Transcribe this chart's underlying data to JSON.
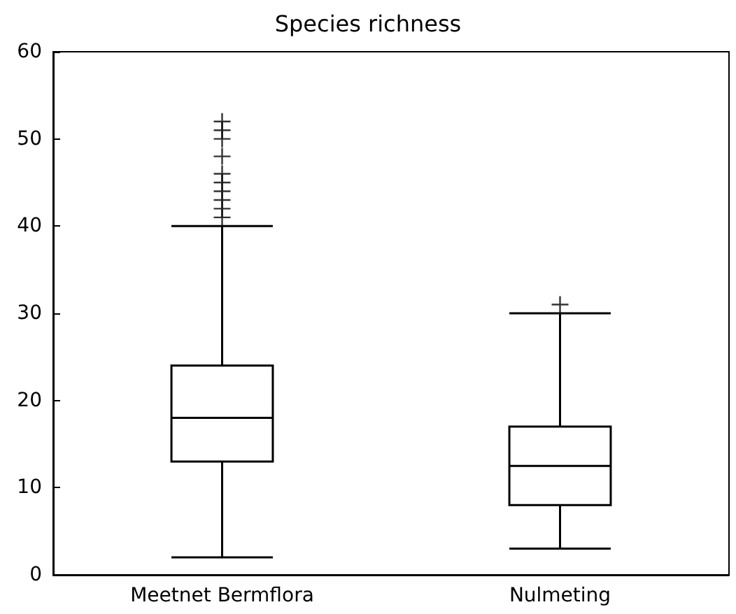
{
  "chart_data": {
    "type": "box",
    "title": "Species richness",
    "categories": [
      "Meetnet Bermflora",
      "Nulmeting"
    ],
    "boxes": [
      {
        "low": 2,
        "q1": 13,
        "median": 18,
        "q3": 24,
        "high": 40,
        "outliers": [
          41,
          42,
          43,
          44,
          45,
          46,
          48,
          50,
          51,
          52
        ]
      },
      {
        "low": 3,
        "q1": 8,
        "median": 12.5,
        "q3": 17,
        "high": 30,
        "outliers": [
          31
        ]
      }
    ],
    "color": "#000000",
    "marker": "cross",
    "grid": false,
    "ylim": [
      0,
      60
    ],
    "yticks": [
      0,
      10,
      20,
      30,
      40,
      50,
      60
    ]
  }
}
